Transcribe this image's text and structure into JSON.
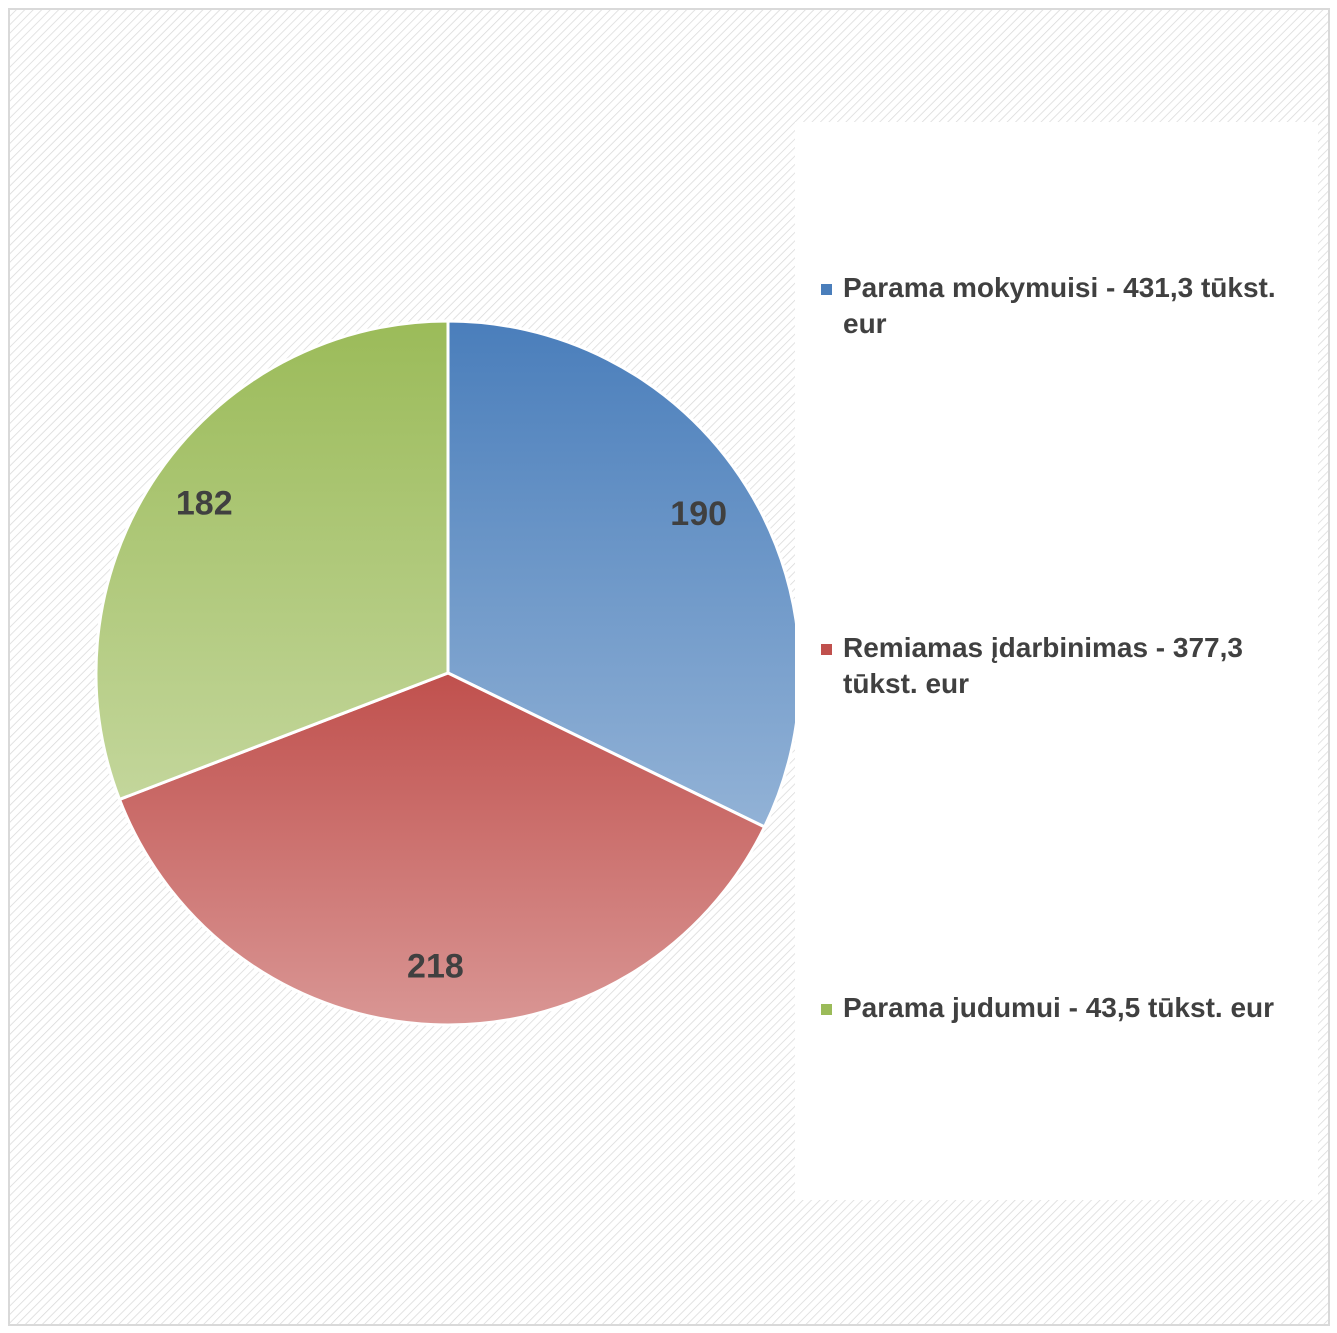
{
  "chart_data": {
    "type": "pie",
    "categories": [
      "Parama mokymuisi - 431,3 tūkst. eur",
      "Remiamas įdarbinimas - 377,3 tūkst. eur",
      "Parama judumui - 43,5 tūkst. eur"
    ],
    "values": [
      190,
      218,
      182
    ],
    "colors": [
      "#4a7ebb",
      "#c0504d",
      "#9bbb59"
    ],
    "legend": "right"
  }
}
